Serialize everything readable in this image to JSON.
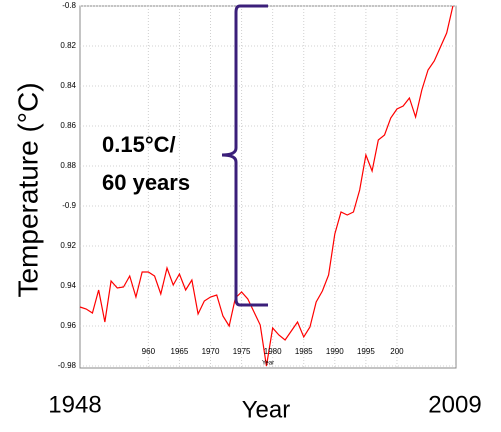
{
  "chart_data": {
    "type": "line",
    "ylabel": "Temperature (°C)",
    "xlabel": "Year",
    "x": [
      1949,
      1950,
      1951,
      1952,
      1953,
      1954,
      1955,
      1956,
      1957,
      1958,
      1959,
      1960,
      1961,
      1962,
      1963,
      1964,
      1965,
      1966,
      1967,
      1968,
      1969,
      1970,
      1971,
      1972,
      1973,
      1974,
      1975,
      1976,
      1977,
      1978,
      1979,
      1980,
      1981,
      1982,
      1983,
      1984,
      1985,
      1986,
      1987,
      1988,
      1989,
      1990,
      1991,
      1992,
      1993,
      1994,
      1995,
      1996,
      1997,
      1998,
      1999,
      2000,
      2001,
      2002,
      2003,
      2004,
      2005,
      2006,
      2007,
      2008,
      2009
    ],
    "series": [
      {
        "color": "#ff0000",
        "values": [
          -0.9505,
          -0.9515,
          -0.9535,
          -0.942,
          -0.958,
          -0.9375,
          -0.941,
          -0.9405,
          -0.935,
          -0.9455,
          -0.933,
          -0.933,
          -0.935,
          -0.944,
          -0.931,
          -0.9395,
          -0.934,
          -0.942,
          -0.937,
          -0.954,
          -0.9475,
          -0.9455,
          -0.9445,
          -0.955,
          -0.96,
          -0.946,
          -0.943,
          -0.9465,
          -0.953,
          -0.9595,
          -0.98,
          -0.961,
          -0.9645,
          -0.967,
          -0.9625,
          -0.958,
          -0.9655,
          -0.9605,
          -0.948,
          -0.9425,
          -0.9345,
          -0.914,
          -0.903,
          -0.9045,
          -0.903,
          -0.892,
          -0.8745,
          -0.8825,
          -0.867,
          -0.8645,
          -0.856,
          -0.8515,
          -0.85,
          -0.846,
          -0.8555,
          -0.842,
          -0.832,
          -0.8275,
          -0.8205,
          -0.8135,
          -0.8
        ]
      }
    ],
    "xlim": [
      1949,
      2009.5
    ],
    "ylim": [
      -0.98,
      -0.8
    ],
    "xticks": [
      {
        "value": 1960,
        "label": "960"
      },
      1965,
      1970,
      1975,
      1980,
      1985,
      1990,
      1995,
      {
        "value": 2000,
        "label": "200"
      }
    ],
    "yticks": [
      -0.8,
      {
        "value": -0.82,
        "label": "0.82"
      },
      {
        "value": -0.84,
        "label": "0.84"
      },
      {
        "value": -0.86,
        "label": "0.86"
      },
      {
        "value": -0.88,
        "label": "0.88"
      },
      -0.9,
      {
        "value": -0.92,
        "label": "0.92"
      },
      {
        "value": -0.94,
        "label": "0.94"
      },
      {
        "value": -0.96,
        "label": "0.96"
      },
      -0.98
    ],
    "grid": true,
    "annotations": {
      "bracket_text": [
        "0.15°C/",
        "60 years"
      ],
      "start_year": "1948",
      "axis_title": "Year",
      "end_year": "2009"
    }
  }
}
